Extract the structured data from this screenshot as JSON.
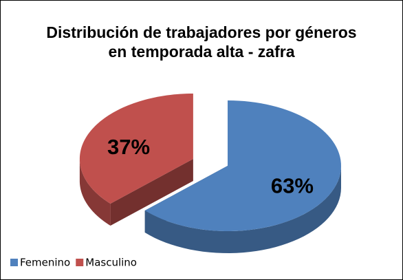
{
  "chart_data": {
    "type": "pie",
    "title": "Distribución de trabajadores por géneros en temporada alta - zafra",
    "categories": [
      "Femenino",
      "Masculino"
    ],
    "values": [
      63,
      37
    ],
    "value_labels": [
      "63%",
      "37%"
    ],
    "colors": [
      "#4f81bd",
      "#c0504d"
    ],
    "legend": "bottom-left"
  }
}
